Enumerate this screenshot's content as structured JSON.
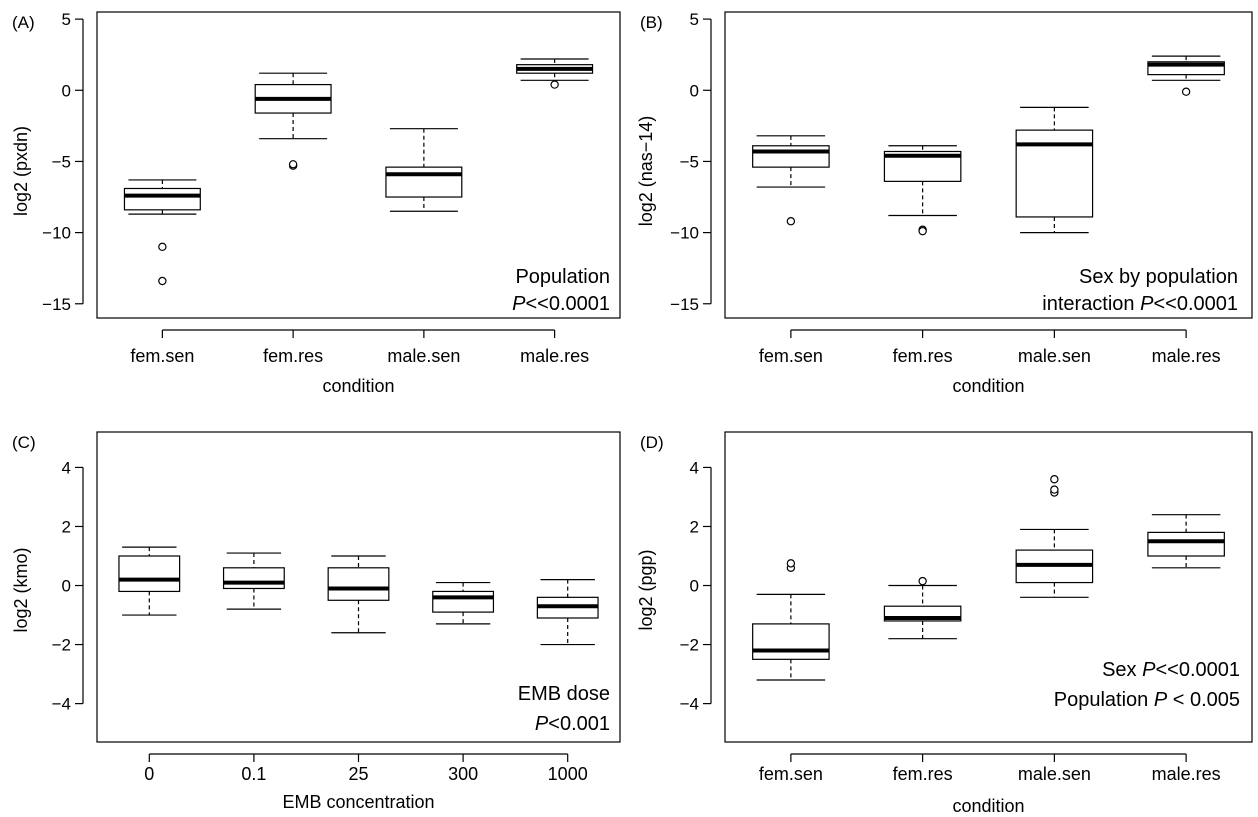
{
  "chart_data": [
    {
      "type": "box",
      "panel_label": "(A)",
      "xlabel": "condition",
      "ylabel": "log2 (pxdn)",
      "ylim": [
        -16,
        5.5
      ],
      "yticks": [
        -15,
        -10,
        -5,
        0,
        5
      ],
      "categories": [
        "fem.sen",
        "fem.res",
        "male.sen",
        "male.res"
      ],
      "boxes": [
        {
          "whisker_low": -8.7,
          "q1": -8.4,
          "median": -7.4,
          "q3": -6.9,
          "whisker_high": -6.3,
          "outliers": [
            -11.0,
            -13.4
          ]
        },
        {
          "whisker_low": -3.4,
          "q1": -1.6,
          "median": -0.6,
          "q3": 0.4,
          "whisker_high": 1.2,
          "outliers": [
            -5.3,
            -5.2
          ]
        },
        {
          "whisker_low": -8.5,
          "q1": -7.5,
          "median": -5.9,
          "q3": -5.4,
          "whisker_high": -2.7,
          "outliers": []
        },
        {
          "whisker_low": 0.7,
          "q1": 1.2,
          "median": 1.5,
          "q3": 1.8,
          "whisker_high": 2.2,
          "outliers": [
            0.4
          ]
        }
      ],
      "annotation": [
        {
          "text": "Population"
        },
        {
          "text": "<<0.0001",
          "italic_prefix": "P"
        }
      ]
    },
    {
      "type": "box",
      "panel_label": "(B)",
      "xlabel": "condition",
      "ylabel": "log2 (nas−14)",
      "ylim": [
        -16,
        5.5
      ],
      "yticks": [
        -15,
        -10,
        -5,
        0,
        5
      ],
      "categories": [
        "fem.sen",
        "fem.res",
        "male.sen",
        "male.res"
      ],
      "boxes": [
        {
          "whisker_low": -6.8,
          "q1": -5.4,
          "median": -4.3,
          "q3": -3.9,
          "whisker_high": -3.2,
          "outliers": [
            -9.2
          ]
        },
        {
          "whisker_low": -8.8,
          "q1": -6.4,
          "median": -4.6,
          "q3": -4.3,
          "whisker_high": -3.9,
          "outliers": [
            -9.8,
            -9.9
          ]
        },
        {
          "whisker_low": -10.0,
          "q1": -8.9,
          "median": -3.8,
          "q3": -2.8,
          "whisker_high": -1.2,
          "outliers": []
        },
        {
          "whisker_low": 0.7,
          "q1": 1.1,
          "median": 1.8,
          "q3": 2.0,
          "whisker_high": 2.4,
          "outliers": [
            -0.1
          ]
        }
      ],
      "annotation": [
        {
          "text": "Sex by population"
        },
        {
          "text": "<<0.0001",
          "plain_prefix": "interaction ",
          "italic_prefix": "P"
        }
      ]
    },
    {
      "type": "box",
      "panel_label": "(C)",
      "xlabel": "EMB concentration",
      "ylabel": "log2 (kmo)",
      "ylim": [
        -5.3,
        5.2
      ],
      "yticks": [
        -4,
        -2,
        0,
        2,
        4
      ],
      "categories": [
        "0",
        "0.1",
        "25",
        "300",
        "1000"
      ],
      "boxes": [
        {
          "whisker_low": -1.0,
          "q1": -0.2,
          "median": 0.2,
          "q3": 1.0,
          "whisker_high": 1.3,
          "outliers": []
        },
        {
          "whisker_low": -0.8,
          "q1": -0.1,
          "median": 0.1,
          "q3": 0.6,
          "whisker_high": 1.1,
          "outliers": []
        },
        {
          "whisker_low": -1.6,
          "q1": -0.5,
          "median": -0.1,
          "q3": 0.6,
          "whisker_high": 1.0,
          "outliers": []
        },
        {
          "whisker_low": -1.3,
          "q1": -0.9,
          "median": -0.4,
          "q3": -0.2,
          "whisker_high": 0.1,
          "outliers": []
        },
        {
          "whisker_low": -2.0,
          "q1": -1.1,
          "median": -0.7,
          "q3": -0.4,
          "whisker_high": 0.2,
          "outliers": []
        }
      ],
      "annotation": [
        {
          "text": "EMB dose"
        },
        {
          "text": "<0.001",
          "italic_prefix": "P"
        }
      ]
    },
    {
      "type": "box",
      "panel_label": "(D)",
      "xlabel": "condition",
      "ylabel": "log2 (pgp)",
      "ylim": [
        -5.3,
        5.2
      ],
      "yticks": [
        -4,
        -2,
        0,
        2,
        4
      ],
      "categories": [
        "fem.sen",
        "fem.res",
        "male.sen",
        "male.res"
      ],
      "boxes": [
        {
          "whisker_low": -3.2,
          "q1": -2.5,
          "median": -2.2,
          "q3": -1.3,
          "whisker_high": -0.3,
          "outliers": [
            0.6,
            0.75
          ]
        },
        {
          "whisker_low": -1.8,
          "q1": -1.2,
          "median": -1.1,
          "q3": -0.7,
          "whisker_high": 0.0,
          "outliers": [
            0.15
          ]
        },
        {
          "whisker_low": -0.4,
          "q1": 0.1,
          "median": 0.7,
          "q3": 1.2,
          "whisker_high": 1.9,
          "outliers": [
            3.15,
            3.25,
            3.6
          ]
        },
        {
          "whisker_low": 0.6,
          "q1": 1.0,
          "median": 1.5,
          "q3": 1.8,
          "whisker_high": 2.4,
          "outliers": []
        }
      ],
      "annotation": [
        {
          "text": "<<0.0001",
          "plain_prefix": "Sex ",
          "italic_prefix": "P"
        },
        {
          "text": " < 0.005",
          "plain_prefix": "Population ",
          "italic_prefix": "P"
        }
      ]
    }
  ]
}
